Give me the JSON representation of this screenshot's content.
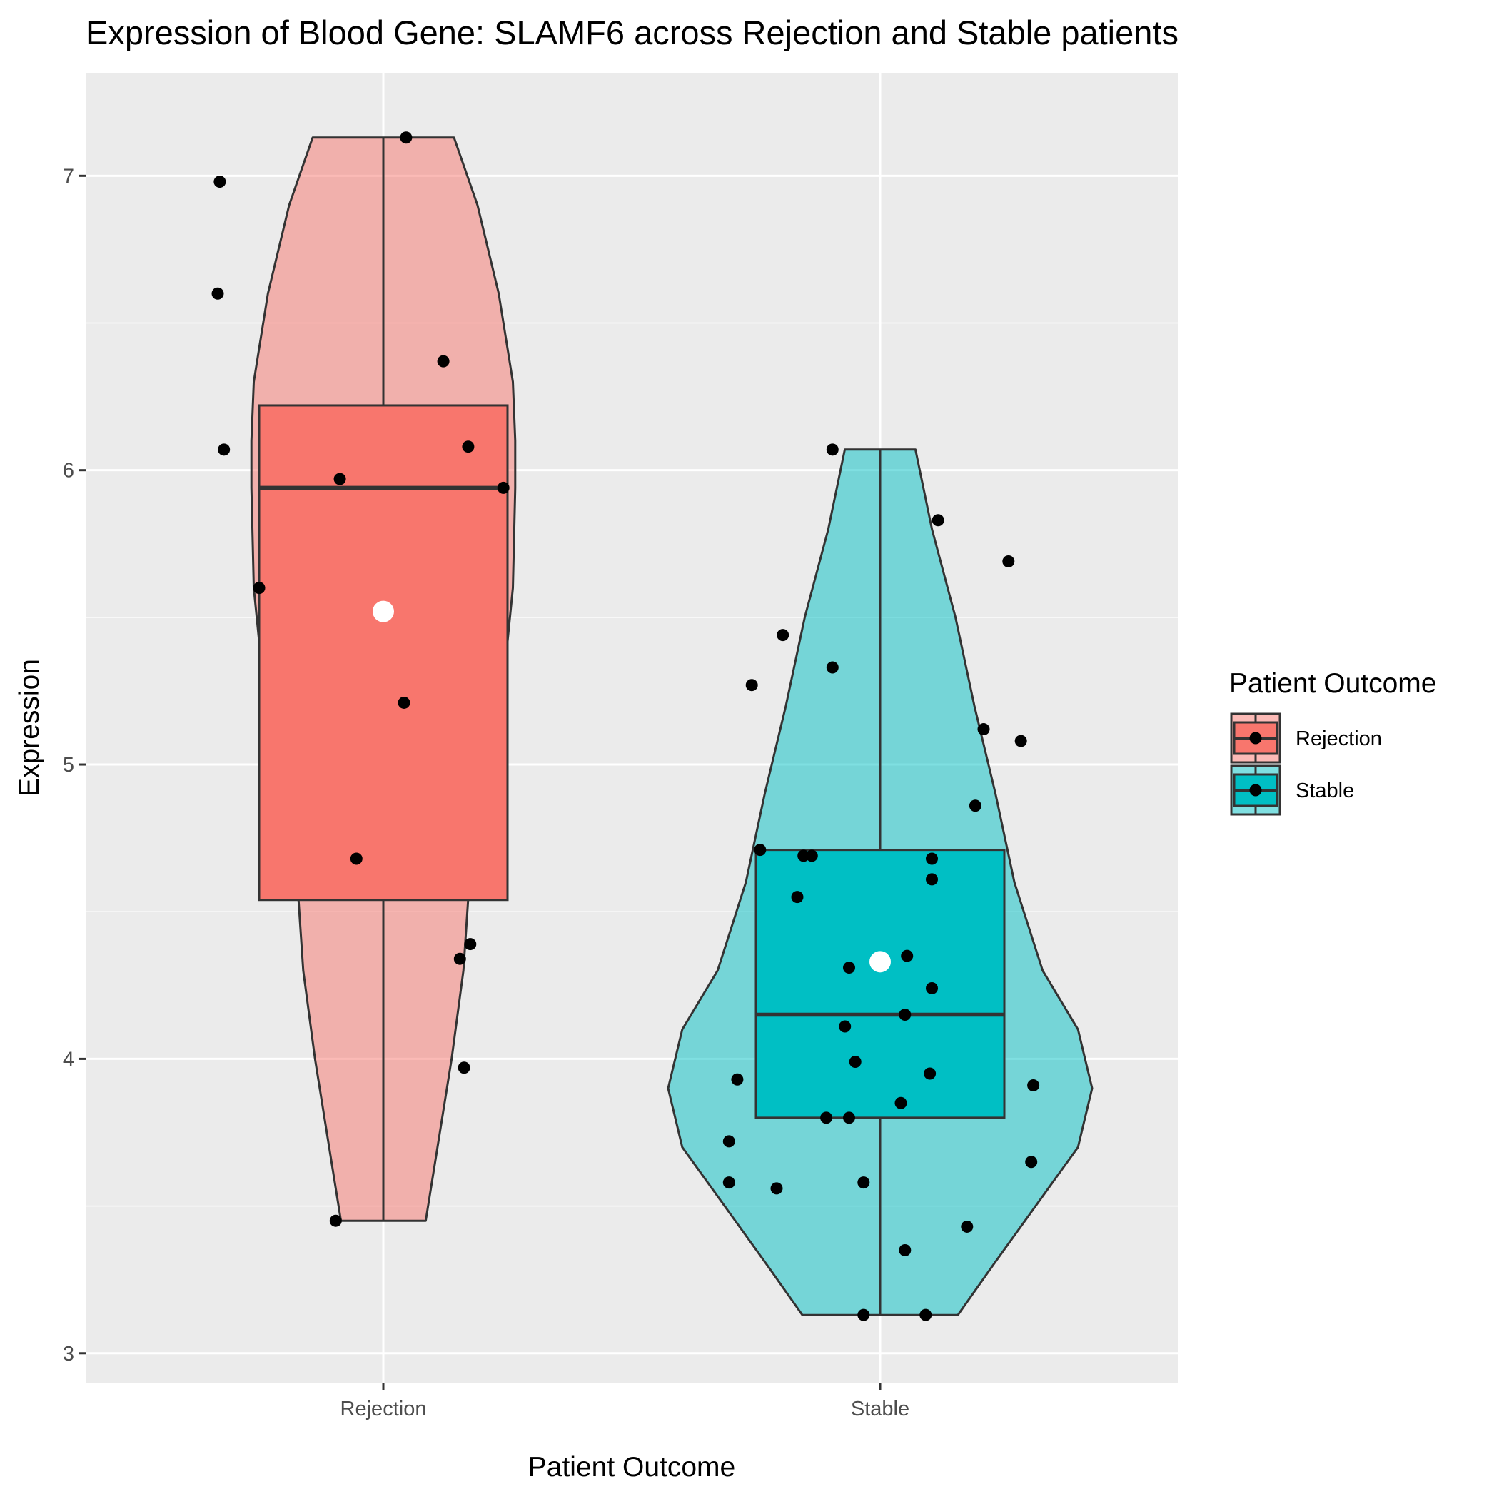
{
  "chart_data": {
    "type": "violin",
    "title": "Expression of Blood Gene: SLAMF6 across Rejection and Stable patients",
    "xlabel": "Patient Outcome",
    "ylabel": "Expression",
    "categories": [
      "Rejection",
      "Stable"
    ],
    "ylim": [
      2.9,
      7.35
    ],
    "yticks": [
      3,
      4,
      5,
      6,
      7
    ],
    "grid": true,
    "legend": {
      "title": "Patient Outcome",
      "position": "right",
      "entries": [
        {
          "label": "Rejection",
          "color": "#F8766D"
        },
        {
          "label": "Stable",
          "color": "#00BFC4"
        }
      ]
    },
    "groups": [
      {
        "name": "Rejection",
        "color": "#F8766D",
        "box": {
          "q1": 4.54,
          "median": 5.94,
          "q3": 6.22,
          "min": 3.45,
          "max": 7.13
        },
        "mean": 5.52,
        "violin": [
          [
            3.45,
            0.18
          ],
          [
            3.7,
            0.23
          ],
          [
            4.0,
            0.29
          ],
          [
            4.3,
            0.34
          ],
          [
            4.54,
            0.36
          ],
          [
            4.8,
            0.42
          ],
          [
            5.2,
            0.5
          ],
          [
            5.6,
            0.55
          ],
          [
            5.94,
            0.56
          ],
          [
            6.1,
            0.56
          ],
          [
            6.3,
            0.55
          ],
          [
            6.6,
            0.49
          ],
          [
            6.9,
            0.4
          ],
          [
            7.13,
            0.3
          ]
        ],
        "points": [
          {
            "x": -0.79,
            "y": 6.98
          },
          {
            "x": -0.8,
            "y": 6.6
          },
          {
            "x": -0.77,
            "y": 6.07
          },
          {
            "x": -0.6,
            "y": 5.6
          },
          {
            "x": -0.21,
            "y": 5.97
          },
          {
            "x": 0.11,
            "y": 7.13
          },
          {
            "x": 0.29,
            "y": 6.37
          },
          {
            "x": 0.41,
            "y": 6.08
          },
          {
            "x": 0.58,
            "y": 5.94
          },
          {
            "x": 0.1,
            "y": 5.21
          },
          {
            "x": -0.13,
            "y": 4.68
          },
          {
            "x": 0.42,
            "y": 4.39
          },
          {
            "x": 0.37,
            "y": 4.34
          },
          {
            "x": 0.39,
            "y": 3.97
          },
          {
            "x": -0.23,
            "y": 3.45
          }
        ]
      },
      {
        "name": "Stable",
        "color": "#00BFC4",
        "box": {
          "q1": 3.8,
          "median": 4.15,
          "q3": 4.71,
          "min": 3.13,
          "max": 6.07
        },
        "mean": 4.33,
        "violin": [
          [
            3.13,
            0.33
          ],
          [
            3.3,
            0.48
          ],
          [
            3.5,
            0.66
          ],
          [
            3.7,
            0.84
          ],
          [
            3.9,
            0.9
          ],
          [
            4.1,
            0.84
          ],
          [
            4.3,
            0.69
          ],
          [
            4.6,
            0.57
          ],
          [
            4.9,
            0.49
          ],
          [
            5.2,
            0.4
          ],
          [
            5.5,
            0.32
          ],
          [
            5.8,
            0.22
          ],
          [
            6.07,
            0.15
          ]
        ],
        "points": [
          {
            "x": -0.62,
            "y": 5.27
          },
          {
            "x": -0.47,
            "y": 5.44
          },
          {
            "x": -0.23,
            "y": 6.07
          },
          {
            "x": -0.23,
            "y": 5.33
          },
          {
            "x": 0.28,
            "y": 5.83
          },
          {
            "x": 0.62,
            "y": 5.69
          },
          {
            "x": 0.5,
            "y": 5.12
          },
          {
            "x": 0.68,
            "y": 5.08
          },
          {
            "x": 0.46,
            "y": 4.86
          },
          {
            "x": -0.58,
            "y": 4.71
          },
          {
            "x": -0.37,
            "y": 4.69
          },
          {
            "x": -0.33,
            "y": 4.69
          },
          {
            "x": 0.25,
            "y": 4.68
          },
          {
            "x": 0.25,
            "y": 4.61
          },
          {
            "x": -0.4,
            "y": 4.55
          },
          {
            "x": 0.13,
            "y": 4.35
          },
          {
            "x": -0.15,
            "y": 4.31
          },
          {
            "x": 0.25,
            "y": 4.24
          },
          {
            "x": 0.12,
            "y": 4.15
          },
          {
            "x": -0.17,
            "y": 4.11
          },
          {
            "x": -0.12,
            "y": 3.99
          },
          {
            "x": 0.24,
            "y": 3.95
          },
          {
            "x": -0.69,
            "y": 3.93
          },
          {
            "x": 0.74,
            "y": 3.91
          },
          {
            "x": 0.1,
            "y": 3.85
          },
          {
            "x": -0.26,
            "y": 3.8
          },
          {
            "x": -0.15,
            "y": 3.8
          },
          {
            "x": -0.73,
            "y": 3.72
          },
          {
            "x": 0.73,
            "y": 3.65
          },
          {
            "x": -0.73,
            "y": 3.58
          },
          {
            "x": -0.5,
            "y": 3.56
          },
          {
            "x": -0.08,
            "y": 3.58
          },
          {
            "x": 0.42,
            "y": 3.43
          },
          {
            "x": 0.12,
            "y": 3.35
          },
          {
            "x": -0.08,
            "y": 3.13
          },
          {
            "x": 0.22,
            "y": 3.13
          }
        ]
      }
    ]
  }
}
